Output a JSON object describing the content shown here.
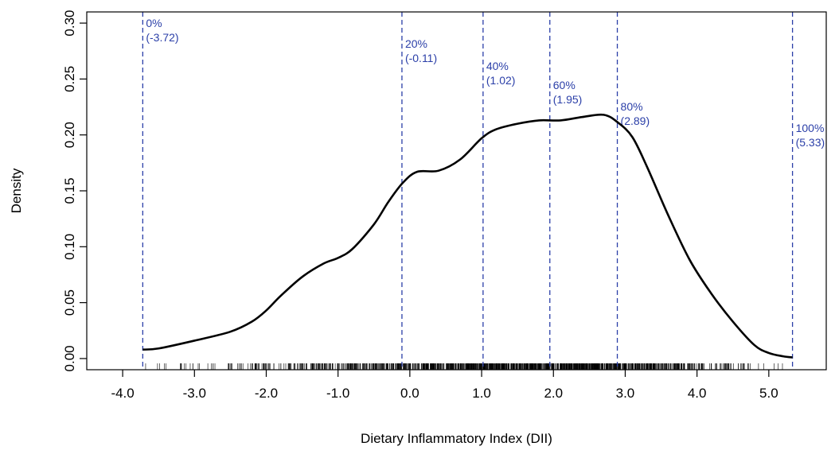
{
  "chart_data": {
    "type": "line",
    "title": "",
    "xlabel": "Dietary Inflammatory Index (DII)",
    "ylabel": "Density",
    "xlim": [
      -4.5,
      5.8
    ],
    "ylim": [
      -0.01,
      0.31
    ],
    "x_ticks": [
      -4.0,
      -3.0,
      -2.0,
      -1.0,
      0.0,
      1.0,
      2.0,
      3.0,
      4.0,
      5.0
    ],
    "x_tick_labels": [
      "-4.0",
      "-3.0",
      "-2.0",
      "-1.0",
      "0.0",
      "1.0",
      "2.0",
      "3.0",
      "4.0",
      "5.0"
    ],
    "y_ticks": [
      0.0,
      0.05,
      0.1,
      0.15,
      0.2,
      0.25,
      0.3
    ],
    "y_tick_labels": [
      "0.00",
      "0.05",
      "0.10",
      "0.15",
      "0.20",
      "0.25",
      "0.30"
    ],
    "grid": false,
    "legend": "none",
    "colors": {
      "curve": "#000000",
      "quantile": "#2b3fa8",
      "axis": "#000000"
    },
    "series": [
      {
        "x": [
          -3.72,
          -3.5,
          -3.0,
          -2.5,
          -2.2,
          -2.0,
          -1.8,
          -1.5,
          -1.2,
          -1.0,
          -0.8,
          -0.5,
          -0.3,
          -0.1,
          0.1,
          0.4,
          0.7,
          1.0,
          1.2,
          1.5,
          1.8,
          2.1,
          2.4,
          2.7,
          2.9,
          3.1,
          3.3,
          3.6,
          3.9,
          4.2,
          4.5,
          4.8,
          5.0,
          5.2,
          5.33
        ],
        "y": [
          0.008,
          0.009,
          0.016,
          0.024,
          0.033,
          0.043,
          0.056,
          0.073,
          0.085,
          0.09,
          0.098,
          0.12,
          0.14,
          0.157,
          0.167,
          0.168,
          0.178,
          0.197,
          0.205,
          0.21,
          0.213,
          0.213,
          0.216,
          0.218,
          0.211,
          0.198,
          0.172,
          0.128,
          0.088,
          0.058,
          0.033,
          0.012,
          0.005,
          0.002,
          0.001
        ]
      }
    ],
    "quantiles": [
      {
        "x": -3.72,
        "pct": "0%",
        "value": "(-3.72)"
      },
      {
        "x": -0.11,
        "pct": "20%",
        "value": "(-0.11)"
      },
      {
        "x": 1.02,
        "pct": "40%",
        "value": "(1.02)"
      },
      {
        "x": 1.95,
        "pct": "60%",
        "value": "(1.95)"
      },
      {
        "x": 2.89,
        "pct": "80%",
        "value": "(2.89)"
      },
      {
        "x": 5.33,
        "pct": "100%",
        "value": "(5.33)"
      }
    ]
  }
}
